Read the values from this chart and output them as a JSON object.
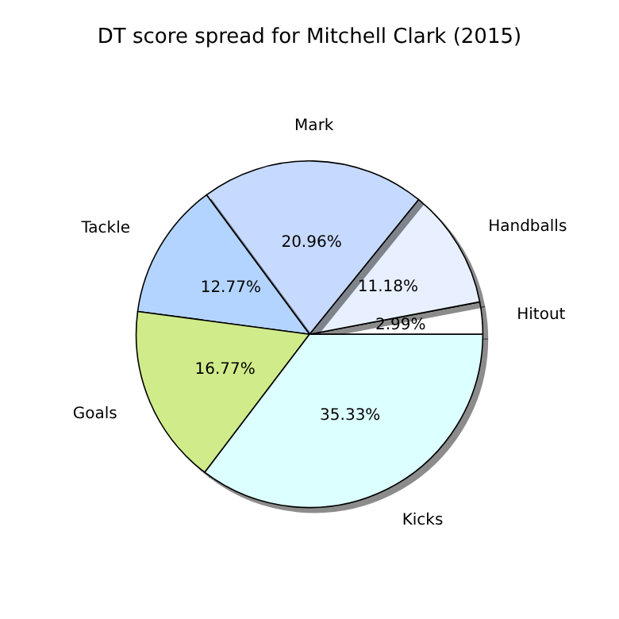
{
  "chart_data": {
    "type": "pie",
    "title": "DT score spread for Mitchell Clark (2015)",
    "categories": [
      "Hitout",
      "Handballs",
      "Mark",
      "Tackle",
      "Goals",
      "Kicks"
    ],
    "values": [
      2.99,
      11.18,
      20.96,
      12.77,
      16.77,
      35.33
    ],
    "colors": [
      "#ffffff",
      "#e8f0ff",
      "#c6d9ff",
      "#b3d4ff",
      "#d0eb8a",
      "#dcffff"
    ],
    "value_labels": [
      "2.99%",
      "11.18%",
      "20.96%",
      "12.77%",
      "16.77%",
      "35.33%"
    ]
  }
}
